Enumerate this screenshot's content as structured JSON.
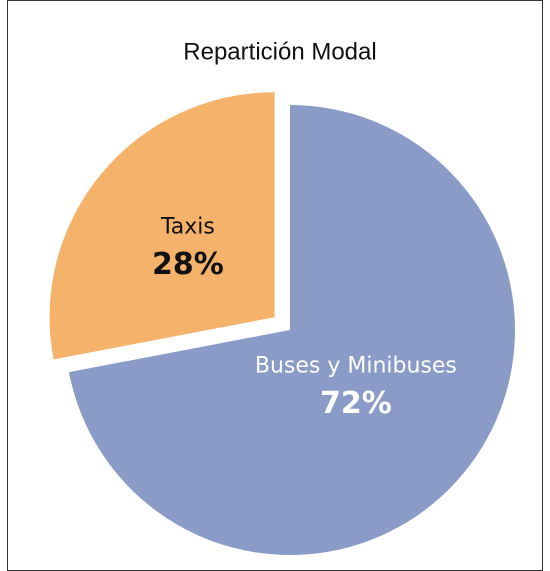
{
  "chart_data": {
    "type": "pie",
    "title": "Repartición Modal",
    "categories": [
      "Buses y Minibuses",
      "Taxis"
    ],
    "values": [
      72,
      28
    ],
    "value_labels": [
      "72%",
      "28%"
    ],
    "colors": [
      "#8b9bc8",
      "#f5b26b"
    ]
  }
}
